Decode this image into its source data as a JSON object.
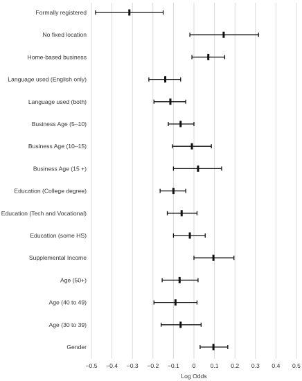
{
  "chart_data": {
    "type": "forest",
    "xlabel": "Log Odds",
    "xlim": [
      -0.5,
      0.5
    ],
    "xticks": [
      -0.5,
      -0.4,
      -0.3,
      -0.2,
      -0.1,
      0,
      0.1,
      0.2,
      0.3,
      0.4,
      0.5
    ],
    "xtick_labels": [
      "−0.5",
      "−0.4",
      "−0.3",
      "−0.2",
      "−0.1",
      "0",
      "0.1",
      "0.2",
      "0.3",
      "0.4",
      "0.5"
    ],
    "grid": "vertical",
    "categories": [
      "Formally registered",
      "No fixed location",
      "Home-based business",
      "Language used (English only)",
      "Language used (both)",
      "Business Age (5–10)",
      "Business Age (10–15)",
      "Business Age (15 +)",
      "Education (College degree)",
      "Education (Tech and Vocational)",
      "Education (some HS)",
      "Supplemental Income",
      "Age (50+)",
      "Age (40 to 49)",
      "Age (30 to 39)",
      "Gender"
    ],
    "estimates": [
      -0.315,
      0.145,
      0.07,
      -0.14,
      -0.115,
      -0.065,
      -0.01,
      0.02,
      -0.1,
      -0.06,
      -0.02,
      0.095,
      -0.07,
      -0.09,
      -0.065,
      0.095
    ],
    "lower": [
      -0.48,
      -0.02,
      -0.01,
      -0.22,
      -0.195,
      -0.125,
      -0.105,
      -0.1,
      -0.165,
      -0.13,
      -0.1,
      0.0,
      -0.155,
      -0.195,
      -0.16,
      0.03
    ],
    "upper": [
      -0.15,
      0.315,
      0.15,
      -0.065,
      -0.04,
      0.0,
      0.085,
      0.135,
      -0.04,
      0.015,
      0.055,
      0.195,
      0.02,
      0.015,
      0.035,
      0.165
    ]
  }
}
